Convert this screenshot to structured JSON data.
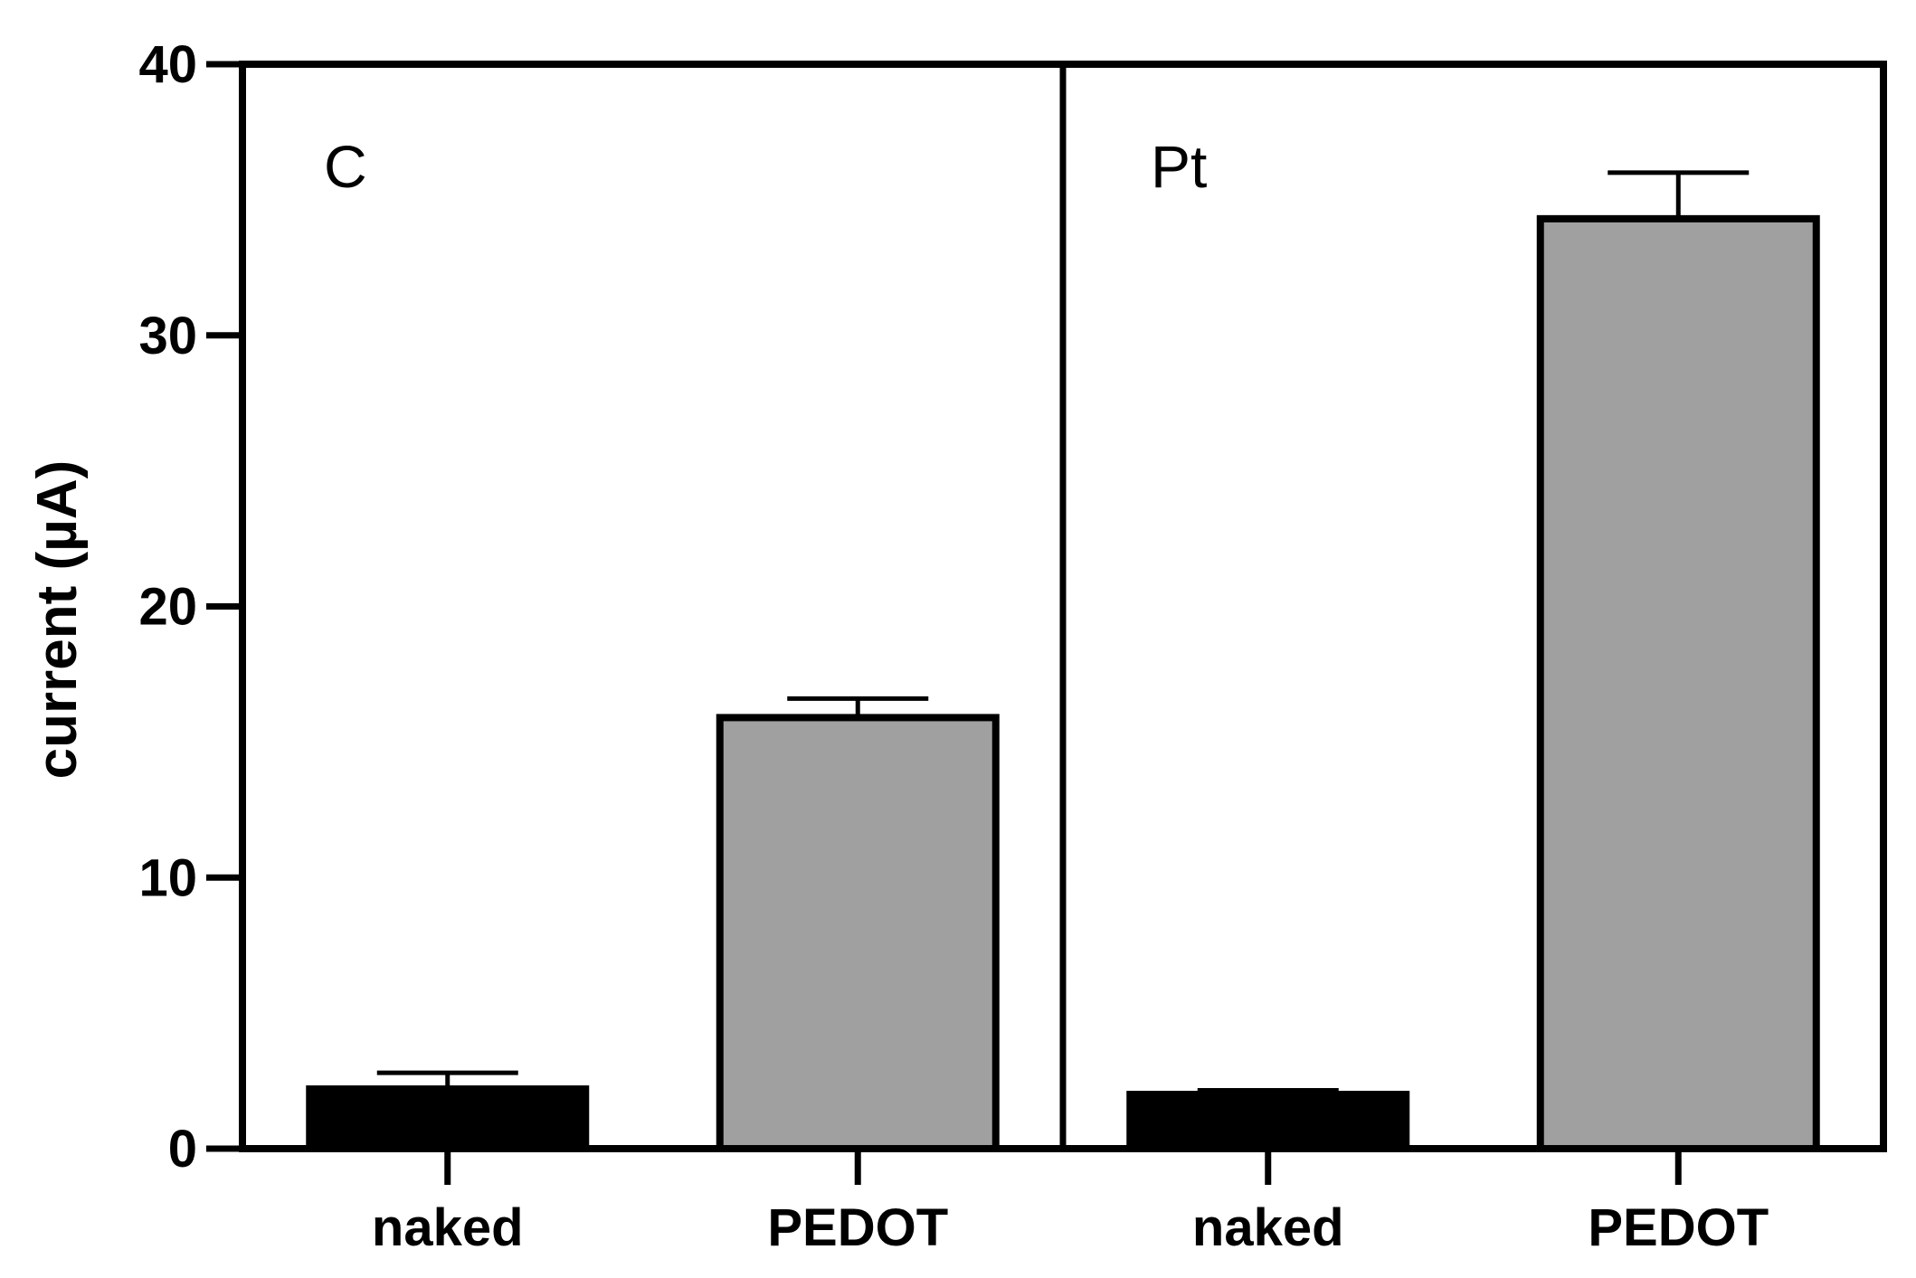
{
  "chart_data": {
    "type": "bar",
    "ylabel": "current (µA)",
    "ylim": [
      0,
      40
    ],
    "yticks": [
      0,
      10,
      20,
      30,
      40
    ],
    "panels": [
      {
        "label": "C",
        "categories": [
          "naked",
          "PEDOT"
        ],
        "values": [
          2.2,
          15.9
        ],
        "errors": [
          0.6,
          0.7
        ],
        "colors": [
          "#000000",
          "#a0a0a0"
        ]
      },
      {
        "label": "Pt",
        "categories": [
          "naked",
          "PEDOT"
        ],
        "values": [
          2.0,
          34.3
        ],
        "errors": [
          0.15,
          1.7
        ],
        "colors": [
          "#000000",
          "#a0a0a0"
        ]
      }
    ],
    "grid": false
  }
}
